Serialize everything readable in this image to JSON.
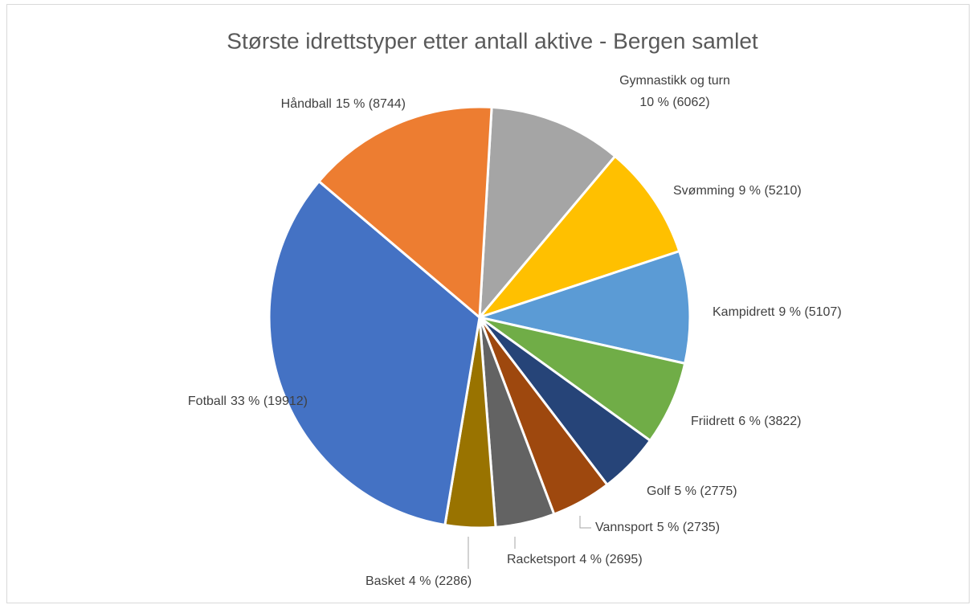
{
  "chart_data": {
    "type": "pie",
    "title": "Største idrettstyper etter antall aktive - Bergen samlet",
    "categories": [
      "Gymnastikk og turn",
      "Svømming",
      "Kampidrett",
      "Friidrett",
      "Golf",
      "Vannsport",
      "Racketsport",
      "Basket",
      "Fotball",
      "Håndball"
    ],
    "values": [
      6062,
      5210,
      5107,
      3822,
      2775,
      2735,
      2695,
      2286,
      19912,
      8744
    ],
    "value_labels": [
      "10 % (6062)",
      "9 % (5210)",
      "9 % (5107)",
      "6 % (3822)",
      "5 % (2775)",
      "5 % (2735)",
      "4 % (2695)",
      "4 % (2286)",
      "33 % (19912)",
      "15 % (8744)"
    ],
    "colors": [
      "#a5a5a5",
      "#ffc000",
      "#5b9bd5",
      "#70ad47",
      "#264478",
      "#9e480e",
      "#636363",
      "#997300",
      "#4472c4",
      "#ed7d31"
    ]
  }
}
